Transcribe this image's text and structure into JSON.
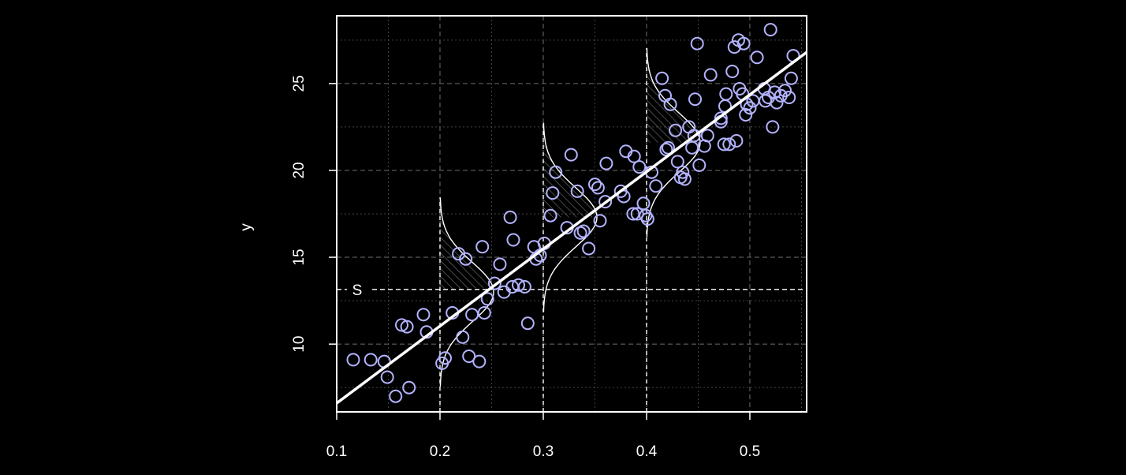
{
  "chart_data": {
    "type": "scatter",
    "title": "",
    "xlabel": "",
    "ylabel": "y",
    "xlim": [
      0.1,
      0.555
    ],
    "ylim": [
      6.1,
      28.9
    ],
    "x_ticks": [
      0.1,
      0.2,
      0.3,
      0.4,
      0.5
    ],
    "x_tick_labels": [
      "0.1",
      "0.2",
      "0.3",
      "0.4",
      "0.5"
    ],
    "y_ticks": [
      10,
      15,
      20,
      25
    ],
    "y_tick_labels": [
      "10",
      "15",
      "20",
      "25"
    ],
    "grid": true,
    "legend": "none",
    "background": "#000000",
    "foreground": "#ffffff",
    "point_color": "#b3b3ff",
    "series": [
      {
        "kind": "points",
        "x": [
          0.116,
          0.133,
          0.146,
          0.149,
          0.157,
          0.163,
          0.168,
          0.17,
          0.184,
          0.187,
          0.202,
          0.205,
          0.212,
          0.218,
          0.222,
          0.225,
          0.228,
          0.231,
          0.238,
          0.241,
          0.243,
          0.246,
          0.253,
          0.258,
          0.262,
          0.268,
          0.27,
          0.271,
          0.276,
          0.282,
          0.285,
          0.291,
          0.293,
          0.297,
          0.301,
          0.307,
          0.309,
          0.312,
          0.323,
          0.327,
          0.333,
          0.336,
          0.339,
          0.344,
          0.35,
          0.353,
          0.355,
          0.36,
          0.361,
          0.375,
          0.378,
          0.38,
          0.387,
          0.388,
          0.391,
          0.393,
          0.397,
          0.399,
          0.401,
          0.405,
          0.409,
          0.415,
          0.418,
          0.419,
          0.421,
          0.423,
          0.428,
          0.43,
          0.433,
          0.435,
          0.437,
          0.441,
          0.444,
          0.446,
          0.447,
          0.449,
          0.451,
          0.456,
          0.459,
          0.462,
          0.472,
          0.472,
          0.475,
          0.476,
          0.477,
          0.48,
          0.483,
          0.485,
          0.487,
          0.489,
          0.49,
          0.493,
          0.494,
          0.496,
          0.497,
          0.5,
          0.503,
          0.507,
          0.514,
          0.515,
          0.518,
          0.52,
          0.522,
          0.524,
          0.526,
          0.53,
          0.534,
          0.538,
          0.54,
          0.542
        ],
        "y": [
          9.1,
          9.1,
          9.0,
          8.1,
          7.0,
          11.1,
          11.0,
          7.5,
          11.7,
          10.7,
          8.9,
          9.2,
          11.8,
          15.2,
          10.4,
          14.9,
          9.3,
          11.7,
          9.0,
          15.6,
          11.8,
          12.6,
          13.5,
          14.6,
          13.0,
          17.3,
          13.3,
          16.0,
          13.4,
          13.3,
          11.2,
          15.6,
          14.9,
          15.1,
          15.8,
          17.4,
          18.7,
          19.9,
          16.7,
          20.9,
          18.8,
          16.4,
          16.5,
          15.5,
          19.2,
          19.0,
          17.1,
          18.2,
          20.4,
          18.8,
          18.5,
          21.1,
          17.5,
          20.8,
          17.5,
          20.2,
          18.1,
          17.4,
          17.2,
          19.9,
          19.1,
          25.3,
          24.3,
          21.2,
          21.3,
          23.8,
          22.3,
          20.5,
          19.6,
          19.9,
          19.5,
          22.5,
          21.3,
          22.0,
          24.1,
          27.3,
          20.3,
          21.4,
          22.0,
          25.5,
          22.8,
          23.0,
          21.5,
          23.7,
          24.4,
          21.5,
          25.7,
          27.1,
          21.7,
          27.5,
          24.7,
          24.4,
          27.3,
          23.2,
          23.8,
          23.6,
          24.0,
          26.5,
          24.7,
          24.0,
          24.2,
          28.1,
          22.5,
          24.5,
          23.9,
          24.3,
          24.6,
          24.2,
          25.3,
          26.6
        ]
      },
      {
        "kind": "regression-line",
        "x": [
          0.1,
          0.555
        ],
        "y": [
          6.6,
          26.8
        ]
      }
    ],
    "density_curves": [
      {
        "at_x": 0.2,
        "mean": 13.0,
        "sd": 1.7
      },
      {
        "at_x": 0.3,
        "mean": 17.3,
        "sd": 1.7
      },
      {
        "at_x": 0.4,
        "mean": 21.6,
        "sd": 1.7
      }
    ],
    "reference_line": {
      "y": 13.15,
      "label": "S"
    }
  }
}
